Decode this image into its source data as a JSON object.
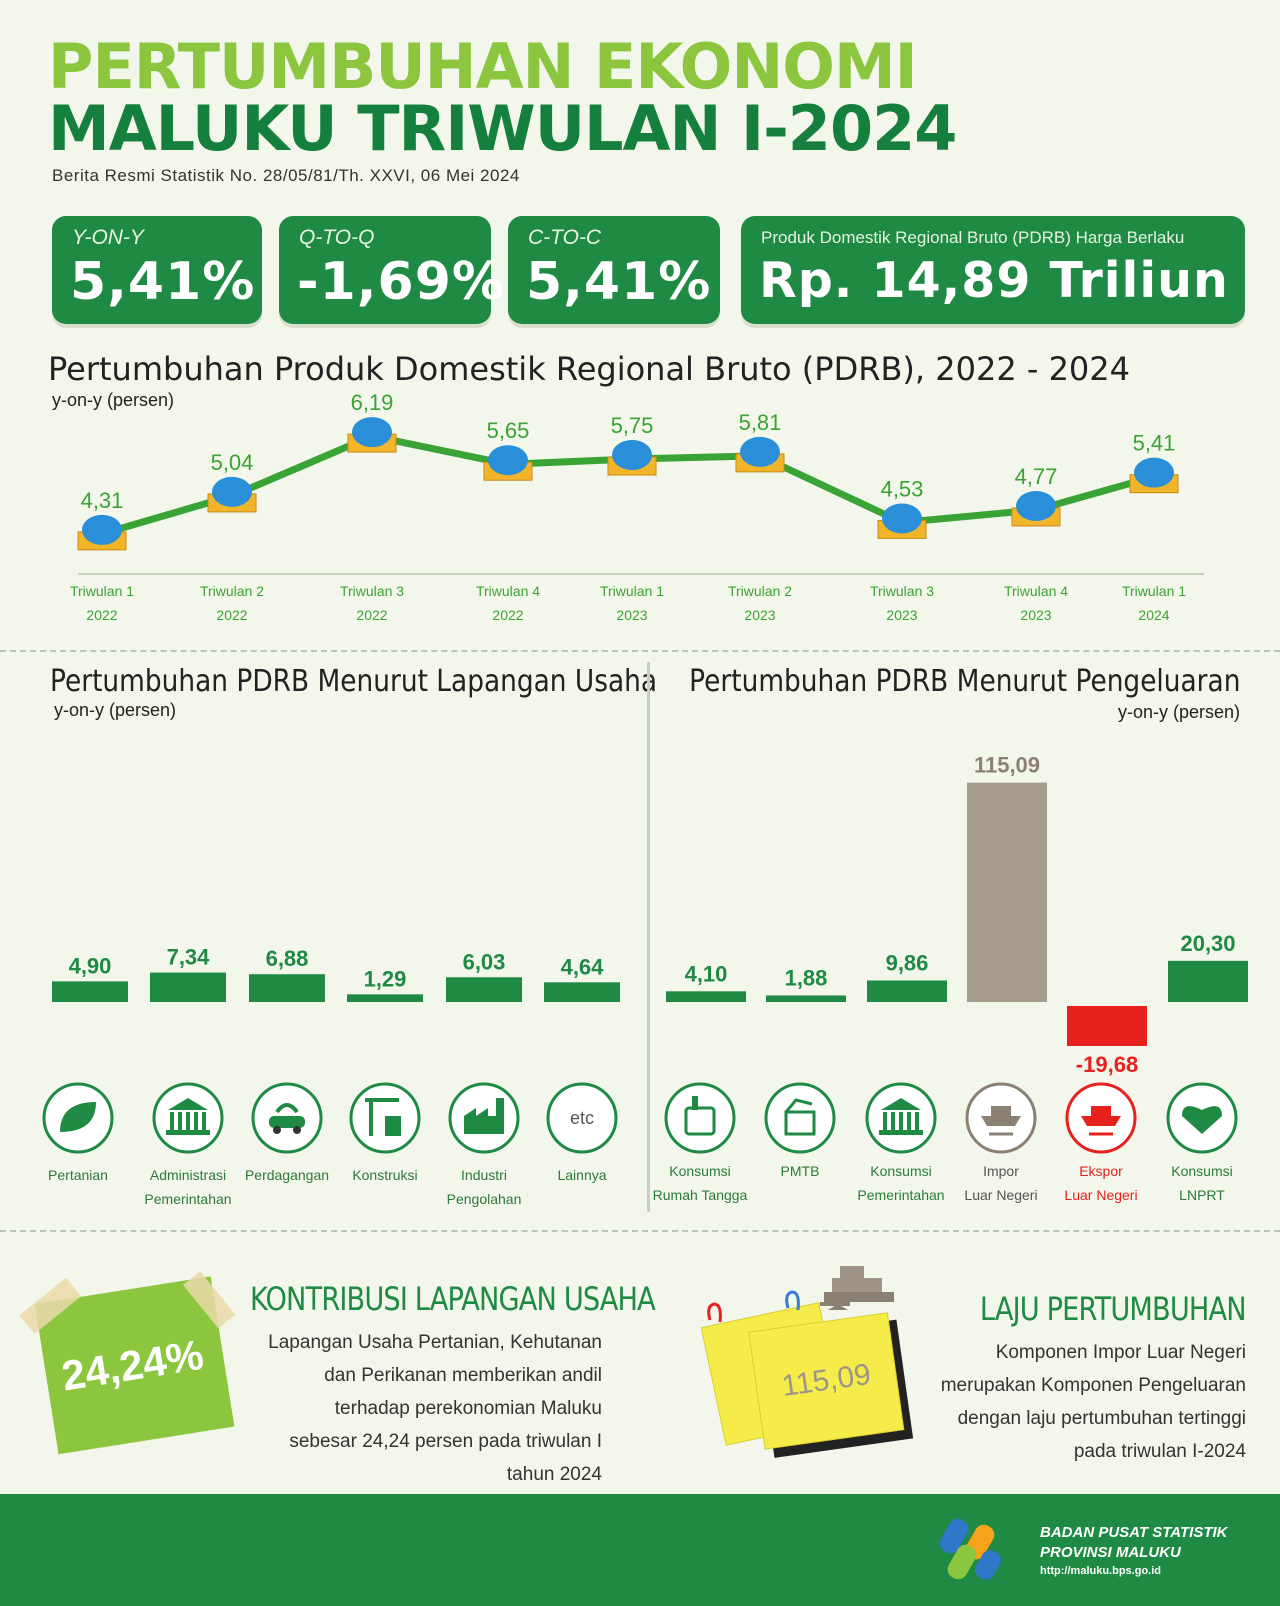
{
  "header": {
    "title_line1": "PERTUMBUHAN EKONOMI",
    "title_line2": "MALUKU TRIWULAN I-2024",
    "subtitle": "Berita Resmi Statistik No. 28/05/81/Th. XXVI, 06 Mei 2024"
  },
  "stats": {
    "yoy": {
      "label": "Y-ON-Y",
      "value": "5,41%"
    },
    "qtoq": {
      "label": "Q-TO-Q",
      "value": "-1,69%"
    },
    "ctoc": {
      "label": "C-TO-C",
      "value": "5,41%"
    },
    "pdrb": {
      "label": "Produk Domestik Regional Bruto (PDRB) Harga Berlaku",
      "value": "Rp. 14,89 Triliun"
    }
  },
  "line_section": {
    "title": "Pertumbuhan Produk Domestik Regional Bruto (PDRB), 2022 - 2024",
    "unit": "y-on-y (persen)"
  },
  "lapangan_section": {
    "title": "Pertumbuhan  PDRB Menurut Lapangan Usaha",
    "unit": "y-on-y (persen)"
  },
  "pengeluaran_section": {
    "title": "Pertumbuhan  PDRB Menurut Pengeluaran",
    "unit": "y-on-y (persen)"
  },
  "chart_data": [
    {
      "type": "line",
      "categories": [
        [
          "Triwulan 1",
          "2022"
        ],
        [
          "Triwulan 2",
          "2022"
        ],
        [
          "Triwulan 3",
          "2022"
        ],
        [
          "Triwulan 4",
          "2022"
        ],
        [
          "Triwulan 1",
          "2023"
        ],
        [
          "Triwulan 2",
          "2023"
        ],
        [
          "Triwulan 3",
          "2023"
        ],
        [
          "Triwulan 4",
          "2023"
        ],
        [
          "Triwulan 1",
          "2024"
        ]
      ],
      "values": [
        4.31,
        5.04,
        6.19,
        5.65,
        5.75,
        5.81,
        4.53,
        4.77,
        5.41
      ],
      "labels": [
        "4,31",
        "5,04",
        "6,19",
        "5,65",
        "5,75",
        "5,81",
        "4,53",
        "4,77",
        "5,41"
      ],
      "title": "Pertumbuhan Produk Domestik Regional Bruto (PDRB), 2022 - 2024",
      "ylabel": "y-on-y (persen)",
      "color": "#3aa335"
    },
    {
      "type": "bar",
      "categories": [
        [
          "Pertanian"
        ],
        [
          "Administrasi",
          "Pemerintahan"
        ],
        [
          "Perdagangan"
        ],
        [
          "Konstruksi"
        ],
        [
          "Industri",
          "Pengolahan"
        ],
        [
          "Lainnya"
        ]
      ],
      "icons": [
        "leaf-icon",
        "government-building-icon",
        "trade-icon",
        "construction-icon",
        "factory-icon",
        "etc-icon"
      ],
      "icon_text": [
        "",
        "",
        "",
        "",
        "",
        "etc"
      ],
      "values": [
        4.9,
        7.34,
        6.88,
        1.29,
        6.03,
        4.64
      ],
      "labels": [
        "4,90",
        "7,34",
        "6,88",
        "1,29",
        "6,03",
        "4,64"
      ],
      "title": "Pertumbuhan  PDRB Menurut Lapangan Usaha",
      "ylabel": "y-on-y (persen)",
      "color": "#1e8a44"
    },
    {
      "type": "bar",
      "categories": [
        [
          "Konsumsi",
          "Rumah Tangga"
        ],
        [
          "PMTB"
        ],
        [
          "Konsumsi",
          "Pemerintahan"
        ],
        [
          "Impor",
          "Luar Negeri"
        ],
        [
          "Ekspor",
          "Luar Negeri"
        ],
        [
          "Konsumsi",
          "LNPRT"
        ]
      ],
      "icons": [
        "household-icon",
        "investment-icon",
        "government-building-icon",
        "import-ship-icon",
        "export-ship-icon",
        "handshake-icon"
      ],
      "values": [
        4.1,
        1.88,
        9.86,
        115.09,
        -19.68,
        20.3
      ],
      "labels": [
        "4,10",
        "1,88",
        "9,86",
        "115,09",
        "-19,68",
        "20,30"
      ],
      "colors": [
        "#1e8a44",
        "#1e8a44",
        "#1e8a44",
        "#a69c8e",
        "#e6211e",
        "#1e8a44"
      ],
      "label_colors": [
        "#1e8a44",
        "#1e8a44",
        "#1e8a44",
        "#8a8174",
        "#e6211e",
        "#1e8a44"
      ],
      "title": "Pertumbuhan  PDRB Menurut Pengeluaran",
      "ylabel": "y-on-y (persen)"
    }
  ],
  "kontribusi": {
    "value": "24,24%",
    "title": "KONTRIBUSI LAPANGAN USAHA",
    "text": "Lapangan Usaha Pertanian, Kehutanan dan Perikanan memberikan andil terhadap perekonomian Maluku sebesar 24,24 persen pada triwulan I tahun 2024"
  },
  "laju": {
    "value": "115,09",
    "title": "LAJU PERTUMBUHAN",
    "text": "Komponen Impor Luar Negeri merupakan Komponen Pengeluaran dengan laju pertumbuhan tertinggi pada triwulan I-2024"
  },
  "footer": {
    "org_line1": "BADAN PUSAT STATISTIK",
    "org_line2": "PROVINSI MALUKU",
    "url": "http://maluku.bps.go.id"
  },
  "colors": {
    "brand_green": "#1e8a44",
    "light_green": "#8cc63f",
    "negative_red": "#e6211e",
    "import_gray": "#a69c8e"
  }
}
